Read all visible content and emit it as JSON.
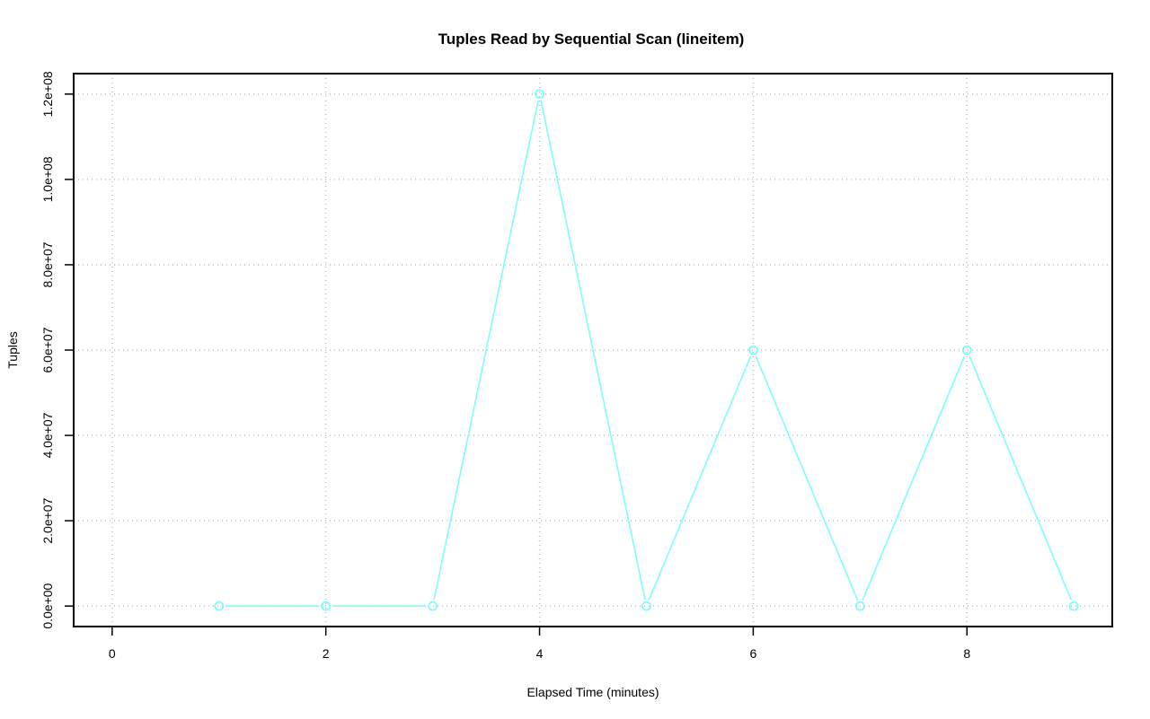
{
  "chart_data": {
    "type": "line",
    "title": "Tuples Read by Sequential Scan (lineitem)",
    "xlabel": "Elapsed Time (minutes)",
    "ylabel": "Tuples",
    "xlim": [
      -0.36,
      9.36
    ],
    "ylim": [
      -4800000.0,
      124800000.0
    ],
    "xticks": [
      0,
      2,
      4,
      6,
      8
    ],
    "xtick_labels": [
      "0",
      "2",
      "4",
      "6",
      "8"
    ],
    "yticks": [
      0,
      20000000,
      40000000,
      60000000,
      80000000,
      100000000,
      120000000
    ],
    "ytick_labels": [
      "0.0e+00",
      "2.0e+07",
      "4.0e+07",
      "6.0e+07",
      "8.0e+07",
      "1.0e+08",
      "1.2e+08"
    ],
    "grid": true,
    "series": [
      {
        "color": "#7ffcfc",
        "marker": "open-circle",
        "x": [
          1,
          2,
          3,
          4,
          5,
          6,
          7,
          8,
          9
        ],
        "y": [
          0,
          0,
          0,
          120000000,
          0,
          60000000,
          0,
          60000000,
          0
        ]
      }
    ]
  }
}
